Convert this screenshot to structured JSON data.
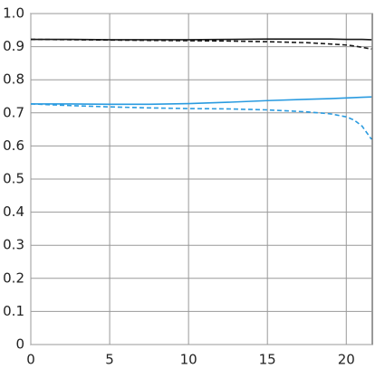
{
  "chart_data": {
    "type": "line",
    "x": [
      0,
      2.5,
      5,
      7.5,
      10,
      12.5,
      15,
      17.5,
      19,
      20,
      20.5,
      21,
      21.6
    ],
    "series": [
      {
        "color": "#1a1a1a",
        "dash": false,
        "values": [
          0.922,
          0.922,
          0.921,
          0.921,
          0.921,
          0.922,
          0.923,
          0.923,
          0.923,
          0.922,
          0.922,
          0.922,
          0.921
        ]
      },
      {
        "color": "#1a1a1a",
        "dash": true,
        "values": [
          0.922,
          0.921,
          0.92,
          0.919,
          0.918,
          0.917,
          0.915,
          0.912,
          0.908,
          0.905,
          0.902,
          0.898,
          0.893
        ]
      },
      {
        "color": "#2a9be0",
        "dash": false,
        "values": [
          0.727,
          0.727,
          0.726,
          0.726,
          0.728,
          0.732,
          0.737,
          0.741,
          0.743,
          0.745,
          0.746,
          0.747,
          0.748
        ]
      },
      {
        "color": "#2a9be0",
        "dash": true,
        "values": [
          0.727,
          0.722,
          0.718,
          0.715,
          0.713,
          0.712,
          0.709,
          0.703,
          0.697,
          0.688,
          0.678,
          0.66,
          0.62
        ]
      }
    ],
    "xlim": [
      0,
      21.65
    ],
    "xticks": [
      0,
      5,
      10,
      15,
      20
    ],
    "ylim": [
      0,
      1
    ],
    "yticks": [
      0,
      0.1,
      0.2,
      0.3,
      0.4,
      0.5,
      0.6,
      0.7,
      0.8,
      0.9,
      {
        "value": 1,
        "label": "1.0"
      }
    ],
    "grid": true
  }
}
